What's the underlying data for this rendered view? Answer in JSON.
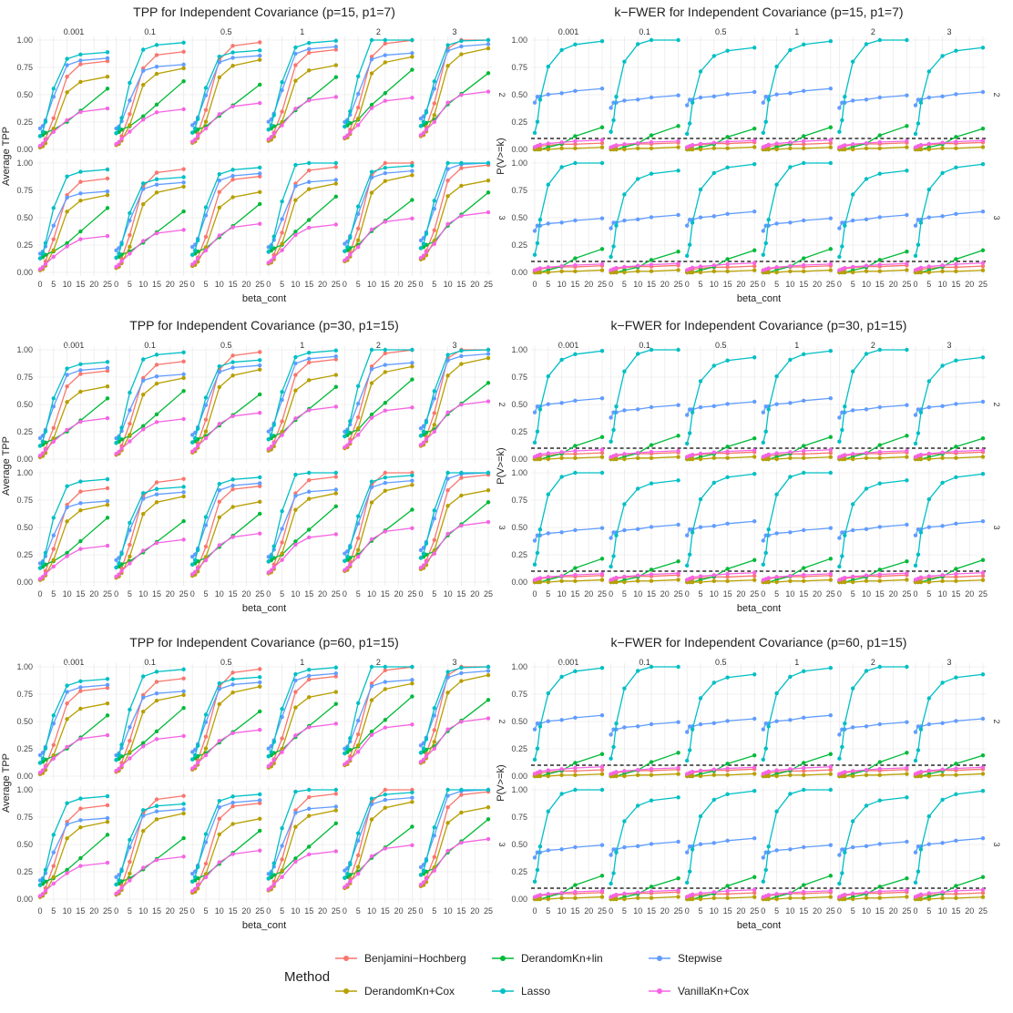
{
  "chart_data": {
    "type": "line",
    "x_ticks": [
      0,
      5,
      10,
      15,
      20,
      25
    ],
    "y_ticks": [
      0.0,
      0.25,
      0.5,
      0.75,
      1.0
    ],
    "y_tick_labels": [
      "0.00",
      "0.25",
      "0.50",
      "0.75",
      "1.00"
    ],
    "ylim": [
      0,
      1
    ],
    "x_values": [
      0,
      1,
      2,
      5,
      10,
      15,
      25
    ],
    "facet_cols": [
      "0.001",
      "0.1",
      "0.5",
      "1",
      "2",
      "3"
    ],
    "facet_rows": [
      "2",
      "3"
    ],
    "reference_line_y": 0.1,
    "panels": [
      {
        "kind": "tpp",
        "title": "TPP for Independent Covariance (p=15, p1=7)",
        "ylabel": "Average TPP",
        "xlabel": "beta_cont"
      },
      {
        "kind": "fwer",
        "title": "k−FWER for Independent Covariance (p=15, p1=7)",
        "ylabel": "P(V>=k)",
        "xlabel": "beta_cont"
      },
      {
        "kind": "tpp",
        "title": "TPP for Independent Covariance (p=30, p1=15)",
        "ylabel": "Average TPP",
        "xlabel": "beta_cont"
      },
      {
        "kind": "fwer",
        "title": "k−FWER for Independent Covariance (p=30, p1=15)",
        "ylabel": "P(V>=k)",
        "xlabel": "beta_cont"
      },
      {
        "kind": "tpp",
        "title": "TPP for Independent Covariance (p=60, p1=15)",
        "ylabel": "Average TPP",
        "xlabel": "beta_cont"
      },
      {
        "kind": "fwer",
        "title": "k−FWER for Independent Covariance (p=60, p1=15)",
        "ylabel": "P(V>=k)",
        "xlabel": "beta_cont"
      }
    ],
    "legend": {
      "title": "Method",
      "placement": "bottom",
      "items": [
        {
          "name": "Benjamini−Hochberg",
          "color": "#F8766D"
        },
        {
          "name": "DerandomKn+lin",
          "color": "#00BA38"
        },
        {
          "name": "Stepwise",
          "color": "#619CFF"
        },
        {
          "name": "DerandomKn+Cox",
          "color": "#B79F00"
        },
        {
          "name": "Lasso",
          "color": "#00BFC4"
        },
        {
          "name": "VanillaKn+Cox",
          "color": "#F564E3"
        }
      ]
    },
    "series_tpp": {
      "Benjamini−Hochberg": [
        0.02,
        0.04,
        0.1,
        0.3,
        0.7,
        0.82,
        0.85
      ],
      "DerandomKn+lin": [
        0.12,
        0.13,
        0.15,
        0.18,
        0.25,
        0.35,
        0.55
      ],
      "Stepwise": [
        0.18,
        0.2,
        0.25,
        0.45,
        0.72,
        0.76,
        0.78
      ],
      "DerandomKn+Cox": [
        0.02,
        0.03,
        0.06,
        0.2,
        0.55,
        0.65,
        0.7
      ],
      "Lasso": [
        0.12,
        0.16,
        0.25,
        0.55,
        0.82,
        0.86,
        0.88
      ],
      "VanillaKn+Cox": [
        0.03,
        0.05,
        0.08,
        0.15,
        0.25,
        0.32,
        0.35
      ]
    },
    "series_fwer": {
      "Benjamini−Hochberg": [
        0.01,
        0.02,
        0.03,
        0.04,
        0.05,
        0.05,
        0.06
      ],
      "DerandomKn+lin": [
        0.0,
        0.0,
        0.0,
        0.02,
        0.05,
        0.12,
        0.2
      ],
      "Stepwise": [
        0.4,
        0.45,
        0.45,
        0.47,
        0.48,
        0.5,
        0.52
      ],
      "DerandomKn+Cox": [
        0.0,
        0.0,
        0.0,
        0.0,
        0.01,
        0.01,
        0.02
      ],
      "Lasso": [
        0.15,
        0.25,
        0.45,
        0.75,
        0.9,
        0.95,
        0.98
      ],
      "VanillaKn+Cox": [
        0.02,
        0.03,
        0.04,
        0.05,
        0.06,
        0.07,
        0.08
      ]
    }
  }
}
